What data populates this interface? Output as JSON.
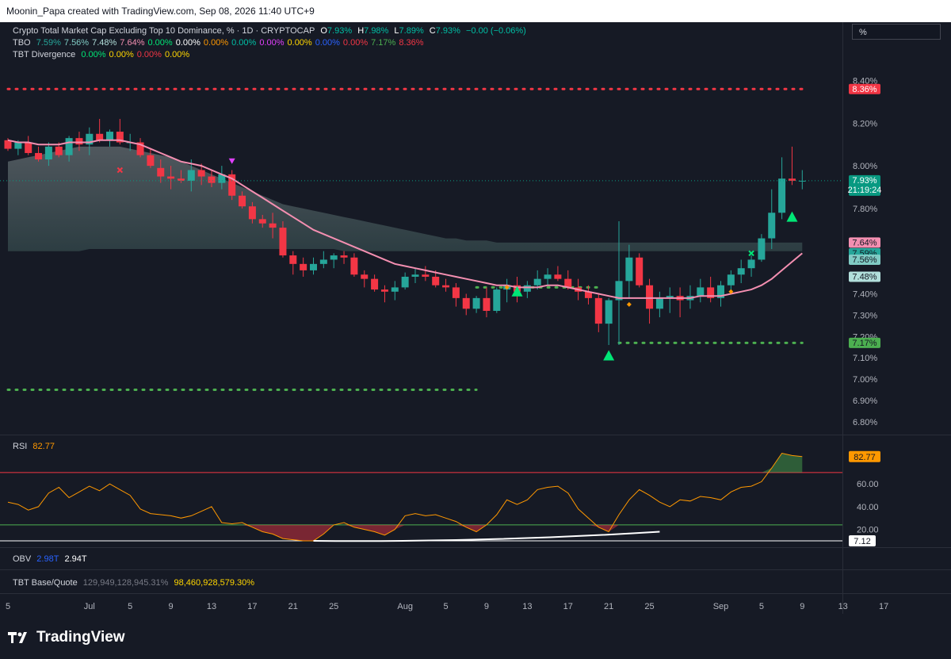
{
  "header": {
    "text": "Moonin_Papa created with TradingView.com, Sep 08, 2026 11:40 UTC+9"
  },
  "legend_main": {
    "title": "Crypto Total Market Cap Excluding Top 10 Dominance, % · 1D · CRYPTOCAP",
    "o_label": "O",
    "o": "7.93%",
    "h_label": "H",
    "h": "7.98%",
    "l_label": "L",
    "l": "7.89%",
    "c_label": "C",
    "c": "7.93%",
    "chg": "−0.00 (−0.06%)"
  },
  "legend_tbo": {
    "name": "TBO",
    "values": [
      {
        "v": "7.59%",
        "color": "#26a69a"
      },
      {
        "v": "7.56%",
        "color": "#80cbc4"
      },
      {
        "v": "7.48%",
        "color": "#b2dfdb"
      },
      {
        "v": "7.64%",
        "color": "#f48fb1"
      },
      {
        "v": "0.00%",
        "color": "#00e676"
      },
      {
        "v": "0.00%",
        "color": "#ffffff"
      },
      {
        "v": "0.00%",
        "color": "#ff9800"
      },
      {
        "v": "0.00%",
        "color": "#00bfa5"
      },
      {
        "v": "0.00%",
        "color": "#e040fb"
      },
      {
        "v": "0.00%",
        "color": "#ffd600"
      },
      {
        "v": "0.00%",
        "color": "#2962ff"
      },
      {
        "v": "0.00%",
        "color": "#f23645"
      },
      {
        "v": "7.17%",
        "color": "#4caf50"
      },
      {
        "v": "8.36%",
        "color": "#f23645"
      }
    ]
  },
  "legend_div": {
    "name": "TBT Divergence",
    "values": [
      {
        "v": "0.00%",
        "color": "#00e676"
      },
      {
        "v": "0.00%",
        "color": "#ffd600"
      },
      {
        "v": "0.00%",
        "color": "#f23645"
      },
      {
        "v": "0.00%",
        "color": "#ffd600"
      }
    ]
  },
  "legend_rsi": {
    "name": "RSI",
    "value": "82.77"
  },
  "legend_obv": {
    "name": "OBV",
    "v1": "2.98T",
    "v2": "2.94T"
  },
  "legend_base": {
    "name": "TBT Base/Quote",
    "v1": "129,949,128,945.31%",
    "v2": "98,460,928,579.30%"
  },
  "unit_box": {
    "label": "%"
  },
  "logo": {
    "text": "TradingView"
  },
  "colors": {
    "up": "#26a69a",
    "down": "#f23645",
    "bg": "#161a25",
    "grid_text": "#b2b5be"
  },
  "chart_data": [
    {
      "type": "candlestick",
      "ylim": [
        6.74,
        8.48
      ],
      "y_ticks": [
        {
          "v": 8.4,
          "label": "8.40%"
        },
        {
          "v": 8.2,
          "label": "8.20%"
        },
        {
          "v": 8.0,
          "label": "8.00%"
        },
        {
          "v": 7.8,
          "label": "7.80%"
        },
        {
          "v": 7.4,
          "label": "7.40%"
        },
        {
          "v": 7.3,
          "label": "7.30%"
        },
        {
          "v": 7.2,
          "label": "7.20%"
        },
        {
          "v": 7.1,
          "label": "7.10%"
        },
        {
          "v": 7.0,
          "label": "7.00%"
        },
        {
          "v": 6.9,
          "label": "6.90%"
        },
        {
          "v": 6.8,
          "label": "6.80%"
        }
      ],
      "x_ticks": [
        {
          "i": 0,
          "label": "5"
        },
        {
          "i": 8,
          "label": "Jul"
        },
        {
          "i": 12,
          "label": "5"
        },
        {
          "i": 16,
          "label": "9"
        },
        {
          "i": 20,
          "label": "13"
        },
        {
          "i": 24,
          "label": "17"
        },
        {
          "i": 28,
          "label": "21"
        },
        {
          "i": 32,
          "label": "25"
        },
        {
          "i": 39,
          "label": "Aug"
        },
        {
          "i": 43,
          "label": "5"
        },
        {
          "i": 47,
          "label": "9"
        },
        {
          "i": 51,
          "label": "13"
        },
        {
          "i": 55,
          "label": "17"
        },
        {
          "i": 59,
          "label": "21"
        },
        {
          "i": 63,
          "label": "25"
        },
        {
          "i": 70,
          "label": "Sep"
        },
        {
          "i": 74,
          "label": "5"
        },
        {
          "i": 78,
          "label": "9"
        },
        {
          "i": 82,
          "label": "13"
        },
        {
          "i": 86,
          "label": "17"
        }
      ],
      "candles": [
        [
          8.12,
          8.13,
          8.07,
          8.08
        ],
        [
          8.08,
          8.12,
          8.05,
          8.11
        ],
        [
          8.11,
          8.14,
          8.05,
          8.06
        ],
        [
          8.06,
          8.09,
          8.02,
          8.03
        ],
        [
          8.03,
          8.11,
          8.0,
          8.09
        ],
        [
          8.09,
          8.11,
          8.04,
          8.05
        ],
        [
          8.05,
          8.14,
          8.02,
          8.13
        ],
        [
          8.13,
          8.16,
          8.07,
          8.1
        ],
        [
          8.1,
          8.18,
          8.05,
          8.15
        ],
        [
          8.15,
          8.22,
          8.11,
          8.12
        ],
        [
          8.12,
          8.17,
          8.09,
          8.16
        ],
        [
          8.16,
          8.22,
          8.1,
          8.11
        ],
        [
          8.11,
          8.15,
          8.07,
          8.11
        ],
        [
          8.11,
          8.13,
          8.04,
          8.05
        ],
        [
          8.05,
          8.08,
          7.99,
          8.0
        ],
        [
          7.99,
          8.03,
          7.92,
          7.95
        ],
        [
          7.95,
          8.0,
          7.89,
          7.94
        ],
        [
          7.94,
          7.98,
          7.92,
          7.93
        ],
        [
          7.93,
          8.03,
          7.88,
          7.98
        ],
        [
          7.98,
          8.01,
          7.91,
          7.95
        ],
        [
          7.95,
          7.98,
          7.9,
          7.92
        ],
        [
          7.92,
          8.0,
          7.89,
          7.96
        ],
        [
          7.96,
          7.98,
          7.84,
          7.86
        ],
        [
          7.86,
          7.88,
          7.8,
          7.81
        ],
        [
          7.81,
          7.83,
          7.73,
          7.75
        ],
        [
          7.75,
          7.77,
          7.71,
          7.73
        ],
        [
          7.73,
          7.78,
          7.66,
          7.71
        ],
        [
          7.71,
          7.74,
          7.57,
          7.58
        ],
        [
          7.58,
          7.6,
          7.49,
          7.54
        ],
        [
          7.54,
          7.57,
          7.48,
          7.51
        ],
        [
          7.51,
          7.57,
          7.49,
          7.54
        ],
        [
          7.54,
          7.6,
          7.52,
          7.56
        ],
        [
          7.56,
          7.59,
          7.52,
          7.58
        ],
        [
          7.58,
          7.6,
          7.54,
          7.57
        ],
        [
          7.57,
          7.59,
          7.48,
          7.49
        ],
        [
          7.49,
          7.51,
          7.43,
          7.47
        ],
        [
          7.47,
          7.49,
          7.41,
          7.42
        ],
        [
          7.42,
          7.44,
          7.36,
          7.41
        ],
        [
          7.41,
          7.46,
          7.37,
          7.43
        ],
        [
          7.43,
          7.5,
          7.42,
          7.48
        ],
        [
          7.48,
          7.52,
          7.45,
          7.49
        ],
        [
          7.49,
          7.53,
          7.46,
          7.48
        ],
        [
          7.48,
          7.51,
          7.43,
          7.44
        ],
        [
          7.44,
          7.47,
          7.41,
          7.43
        ],
        [
          7.43,
          7.45,
          7.34,
          7.38
        ],
        [
          7.38,
          7.4,
          7.3,
          7.33
        ],
        [
          7.33,
          7.39,
          7.31,
          7.38
        ],
        [
          7.38,
          7.43,
          7.29,
          7.32
        ],
        [
          7.32,
          7.43,
          7.31,
          7.42
        ],
        [
          7.42,
          7.47,
          7.36,
          7.44
        ],
        [
          7.44,
          7.48,
          7.36,
          7.41
        ],
        [
          7.41,
          7.46,
          7.38,
          7.44
        ],
        [
          7.44,
          7.51,
          7.42,
          7.47
        ],
        [
          7.47,
          7.52,
          7.44,
          7.49
        ],
        [
          7.49,
          7.53,
          7.46,
          7.47
        ],
        [
          7.47,
          7.51,
          7.42,
          7.43
        ],
        [
          7.43,
          7.47,
          7.37,
          7.41
        ],
        [
          7.41,
          7.44,
          7.35,
          7.38
        ],
        [
          7.38,
          7.4,
          7.22,
          7.26
        ],
        [
          7.26,
          7.38,
          7.16,
          7.37
        ],
        [
          7.37,
          7.74,
          7.16,
          7.46
        ],
        [
          7.46,
          7.63,
          7.38,
          7.57
        ],
        [
          7.57,
          7.59,
          7.43,
          7.44
        ],
        [
          7.44,
          7.47,
          7.26,
          7.33
        ],
        [
          7.33,
          7.41,
          7.29,
          7.38
        ],
        [
          7.38,
          7.43,
          7.31,
          7.39
        ],
        [
          7.39,
          7.43,
          7.29,
          7.37
        ],
        [
          7.37,
          7.44,
          7.33,
          7.39
        ],
        [
          7.39,
          7.47,
          7.36,
          7.43
        ],
        [
          7.43,
          7.48,
          7.36,
          7.38
        ],
        [
          7.38,
          7.46,
          7.34,
          7.44
        ],
        [
          7.44,
          7.51,
          7.4,
          7.49
        ],
        [
          7.49,
          7.56,
          7.45,
          7.52
        ],
        [
          7.52,
          7.58,
          7.48,
          7.56
        ],
        [
          7.56,
          7.68,
          7.55,
          7.66
        ],
        [
          7.66,
          7.89,
          7.61,
          7.78
        ],
        [
          7.78,
          8.04,
          7.75,
          7.94
        ],
        [
          7.94,
          8.09,
          7.91,
          7.93
        ],
        [
          7.93,
          7.98,
          7.89,
          7.93
        ]
      ],
      "ma_fast": [
        8.12,
        8.11,
        8.11,
        8.1,
        8.1,
        8.1,
        8.11,
        8.11,
        8.11,
        8.12,
        8.12,
        8.12,
        8.11,
        8.1,
        8.08,
        8.06,
        8.04,
        8.02,
        8.01,
        8.0,
        7.98,
        7.96,
        7.94,
        7.91,
        7.88,
        7.85,
        7.82,
        7.79,
        7.76,
        7.73,
        7.7,
        7.68,
        7.66,
        7.64,
        7.62,
        7.6,
        7.58,
        7.56,
        7.54,
        7.53,
        7.52,
        7.51,
        7.5,
        7.49,
        7.48,
        7.47,
        7.46,
        7.45,
        7.44,
        7.44,
        7.43,
        7.43,
        7.43,
        7.44,
        7.44,
        7.43,
        7.42,
        7.41,
        7.4,
        7.39,
        7.38,
        7.38,
        7.38,
        7.38,
        7.38,
        7.38,
        7.38,
        7.38,
        7.39,
        7.39,
        7.39,
        7.4,
        7.41,
        7.42,
        7.44,
        7.47,
        7.51,
        7.55,
        7.59
      ],
      "cloud_upper": [
        8.02,
        8.03,
        8.04,
        8.05,
        8.06,
        8.07,
        8.08,
        8.09,
        8.09,
        8.09,
        8.09,
        8.09,
        8.08,
        8.07,
        8.06,
        8.05,
        8.04,
        8.02,
        8.0,
        7.98,
        7.96,
        7.94,
        7.92,
        7.9,
        7.88,
        7.86,
        7.84,
        7.82,
        7.81,
        7.8,
        7.79,
        7.78,
        7.77,
        7.76,
        7.75,
        7.74,
        7.73,
        7.72,
        7.71,
        7.7,
        7.69,
        7.68,
        7.67,
        7.66,
        7.66,
        7.65,
        7.65,
        7.65,
        7.64,
        7.64,
        7.64,
        7.64,
        7.64,
        7.64,
        7.64,
        7.64,
        7.64,
        7.64,
        7.64,
        7.64,
        7.64,
        7.64,
        7.64,
        7.64,
        7.64,
        7.64,
        7.64,
        7.64,
        7.64,
        7.64,
        7.64,
        7.64,
        7.64,
        7.64,
        7.64,
        7.64,
        7.64,
        7.64,
        7.64
      ],
      "cloud_lower": [
        7.6,
        7.6,
        7.6,
        7.6,
        7.6,
        7.6,
        7.6,
        7.6,
        7.61,
        7.61,
        7.61,
        7.61,
        7.61,
        7.61,
        7.61,
        7.61,
        7.61,
        7.61,
        7.61,
        7.61,
        7.61,
        7.61,
        7.61,
        7.61,
        7.61,
        7.61,
        7.61,
        7.61,
        7.61,
        7.61,
        7.61,
        7.61,
        7.61,
        7.6,
        7.6,
        7.6,
        7.6,
        7.6,
        7.6,
        7.6,
        7.6,
        7.6,
        7.6,
        7.6,
        7.6,
        7.6,
        7.6,
        7.6,
        7.6,
        7.6,
        7.6,
        7.6,
        7.6,
        7.6,
        7.6,
        7.6,
        7.6,
        7.6,
        7.6,
        7.6,
        7.6,
        7.6,
        7.6,
        7.6,
        7.6,
        7.6,
        7.6,
        7.6,
        7.6,
        7.6,
        7.6,
        7.6,
        7.6,
        7.6,
        7.6,
        7.6,
        7.6,
        7.6,
        7.6
      ],
      "dotted_lines": [
        {
          "value": 8.36,
          "from": 0,
          "to": 78,
          "color": "#f23645"
        },
        {
          "value": 7.17,
          "from": 60,
          "to": 78,
          "color": "#4caf50"
        },
        {
          "value": 6.95,
          "from": 0,
          "to": 46,
          "color": "#4caf50"
        },
        {
          "value": 7.43,
          "from": 46,
          "to": 58,
          "color": "#4caf50"
        }
      ],
      "markers": [
        {
          "i": 22,
          "v": 8.02,
          "shape": "tri-down",
          "color": "#e040fb"
        },
        {
          "i": 50,
          "v": 7.41,
          "shape": "tri-up",
          "color": "#00e676"
        },
        {
          "i": 59,
          "v": 7.11,
          "shape": "tri-up",
          "color": "#00e676"
        },
        {
          "i": 77,
          "v": 7.76,
          "shape": "tri-up",
          "color": "#00e676"
        },
        {
          "i": 61,
          "v": 7.35,
          "shape": "diamond",
          "color": "#ff9800"
        },
        {
          "i": 71,
          "v": 7.41,
          "shape": "diamond",
          "color": "#ff9800"
        },
        {
          "i": 49,
          "v": 7.43,
          "shape": "diamond",
          "color": "#ff9800"
        },
        {
          "i": 11,
          "v": 7.98,
          "shape": "x",
          "color": "#f23645"
        },
        {
          "i": 73,
          "v": 7.59,
          "shape": "x",
          "color": "#00e676"
        }
      ],
      "price_labels": [
        {
          "v": 8.36,
          "label": "8.36%",
          "bg": "#f23645",
          "fg": "#ffffff"
        },
        {
          "v": 7.93,
          "label": "7.93%",
          "sub": "21:19:24",
          "bg": "#089981",
          "fg": "#ffffff"
        },
        {
          "v": 7.64,
          "label": "7.64%",
          "bg": "#f48fb1",
          "fg": "#131722"
        },
        {
          "v": 7.59,
          "label": "7.59%",
          "bg": "#26a69a",
          "fg": "#131722"
        },
        {
          "v": 7.56,
          "label": "7.56%",
          "bg": "#80cbc4",
          "fg": "#131722"
        },
        {
          "v": 7.48,
          "label": "7.48%",
          "bg": "#b2dfdb",
          "fg": "#131722"
        },
        {
          "v": 7.17,
          "label": "7.17%",
          "bg": "#4caf50",
          "fg": "#131722"
        }
      ]
    },
    {
      "type": "line",
      "title": "RSI",
      "ylim": [
        10,
        95
      ],
      "y_ticks": [
        {
          "v": 60,
          "label": "60.00"
        },
        {
          "v": 40,
          "label": "40.00"
        },
        {
          "v": 20,
          "label": "20.00"
        }
      ],
      "levels": [
        {
          "v": 70,
          "color": "#f23645"
        },
        {
          "v": 24,
          "color": "#4caf50"
        },
        {
          "v": 10,
          "color": "#ffffff"
        }
      ],
      "values": [
        44,
        42,
        37,
        40,
        52,
        57,
        48,
        53,
        58,
        54,
        60,
        55,
        50,
        38,
        34,
        33,
        32,
        30,
        32,
        36,
        40,
        26,
        25,
        26,
        22,
        18,
        16,
        12,
        11,
        10,
        10,
        16,
        24,
        26,
        22,
        20,
        18,
        15,
        20,
        32,
        34,
        32,
        33,
        30,
        27,
        22,
        18,
        24,
        33,
        46,
        42,
        46,
        55,
        57,
        58,
        52,
        38,
        30,
        22,
        18,
        33,
        46,
        55,
        50,
        44,
        40,
        46,
        45,
        49,
        48,
        46,
        53,
        57,
        58,
        62,
        74,
        87,
        85,
        84
      ],
      "current_label": "82.77",
      "trend_line": {
        "from_i": 30,
        "to_i": 64,
        "from_v": 10,
        "to_v": 18,
        "color": "#ffffff"
      },
      "last_val_box": "7.12"
    }
  ]
}
